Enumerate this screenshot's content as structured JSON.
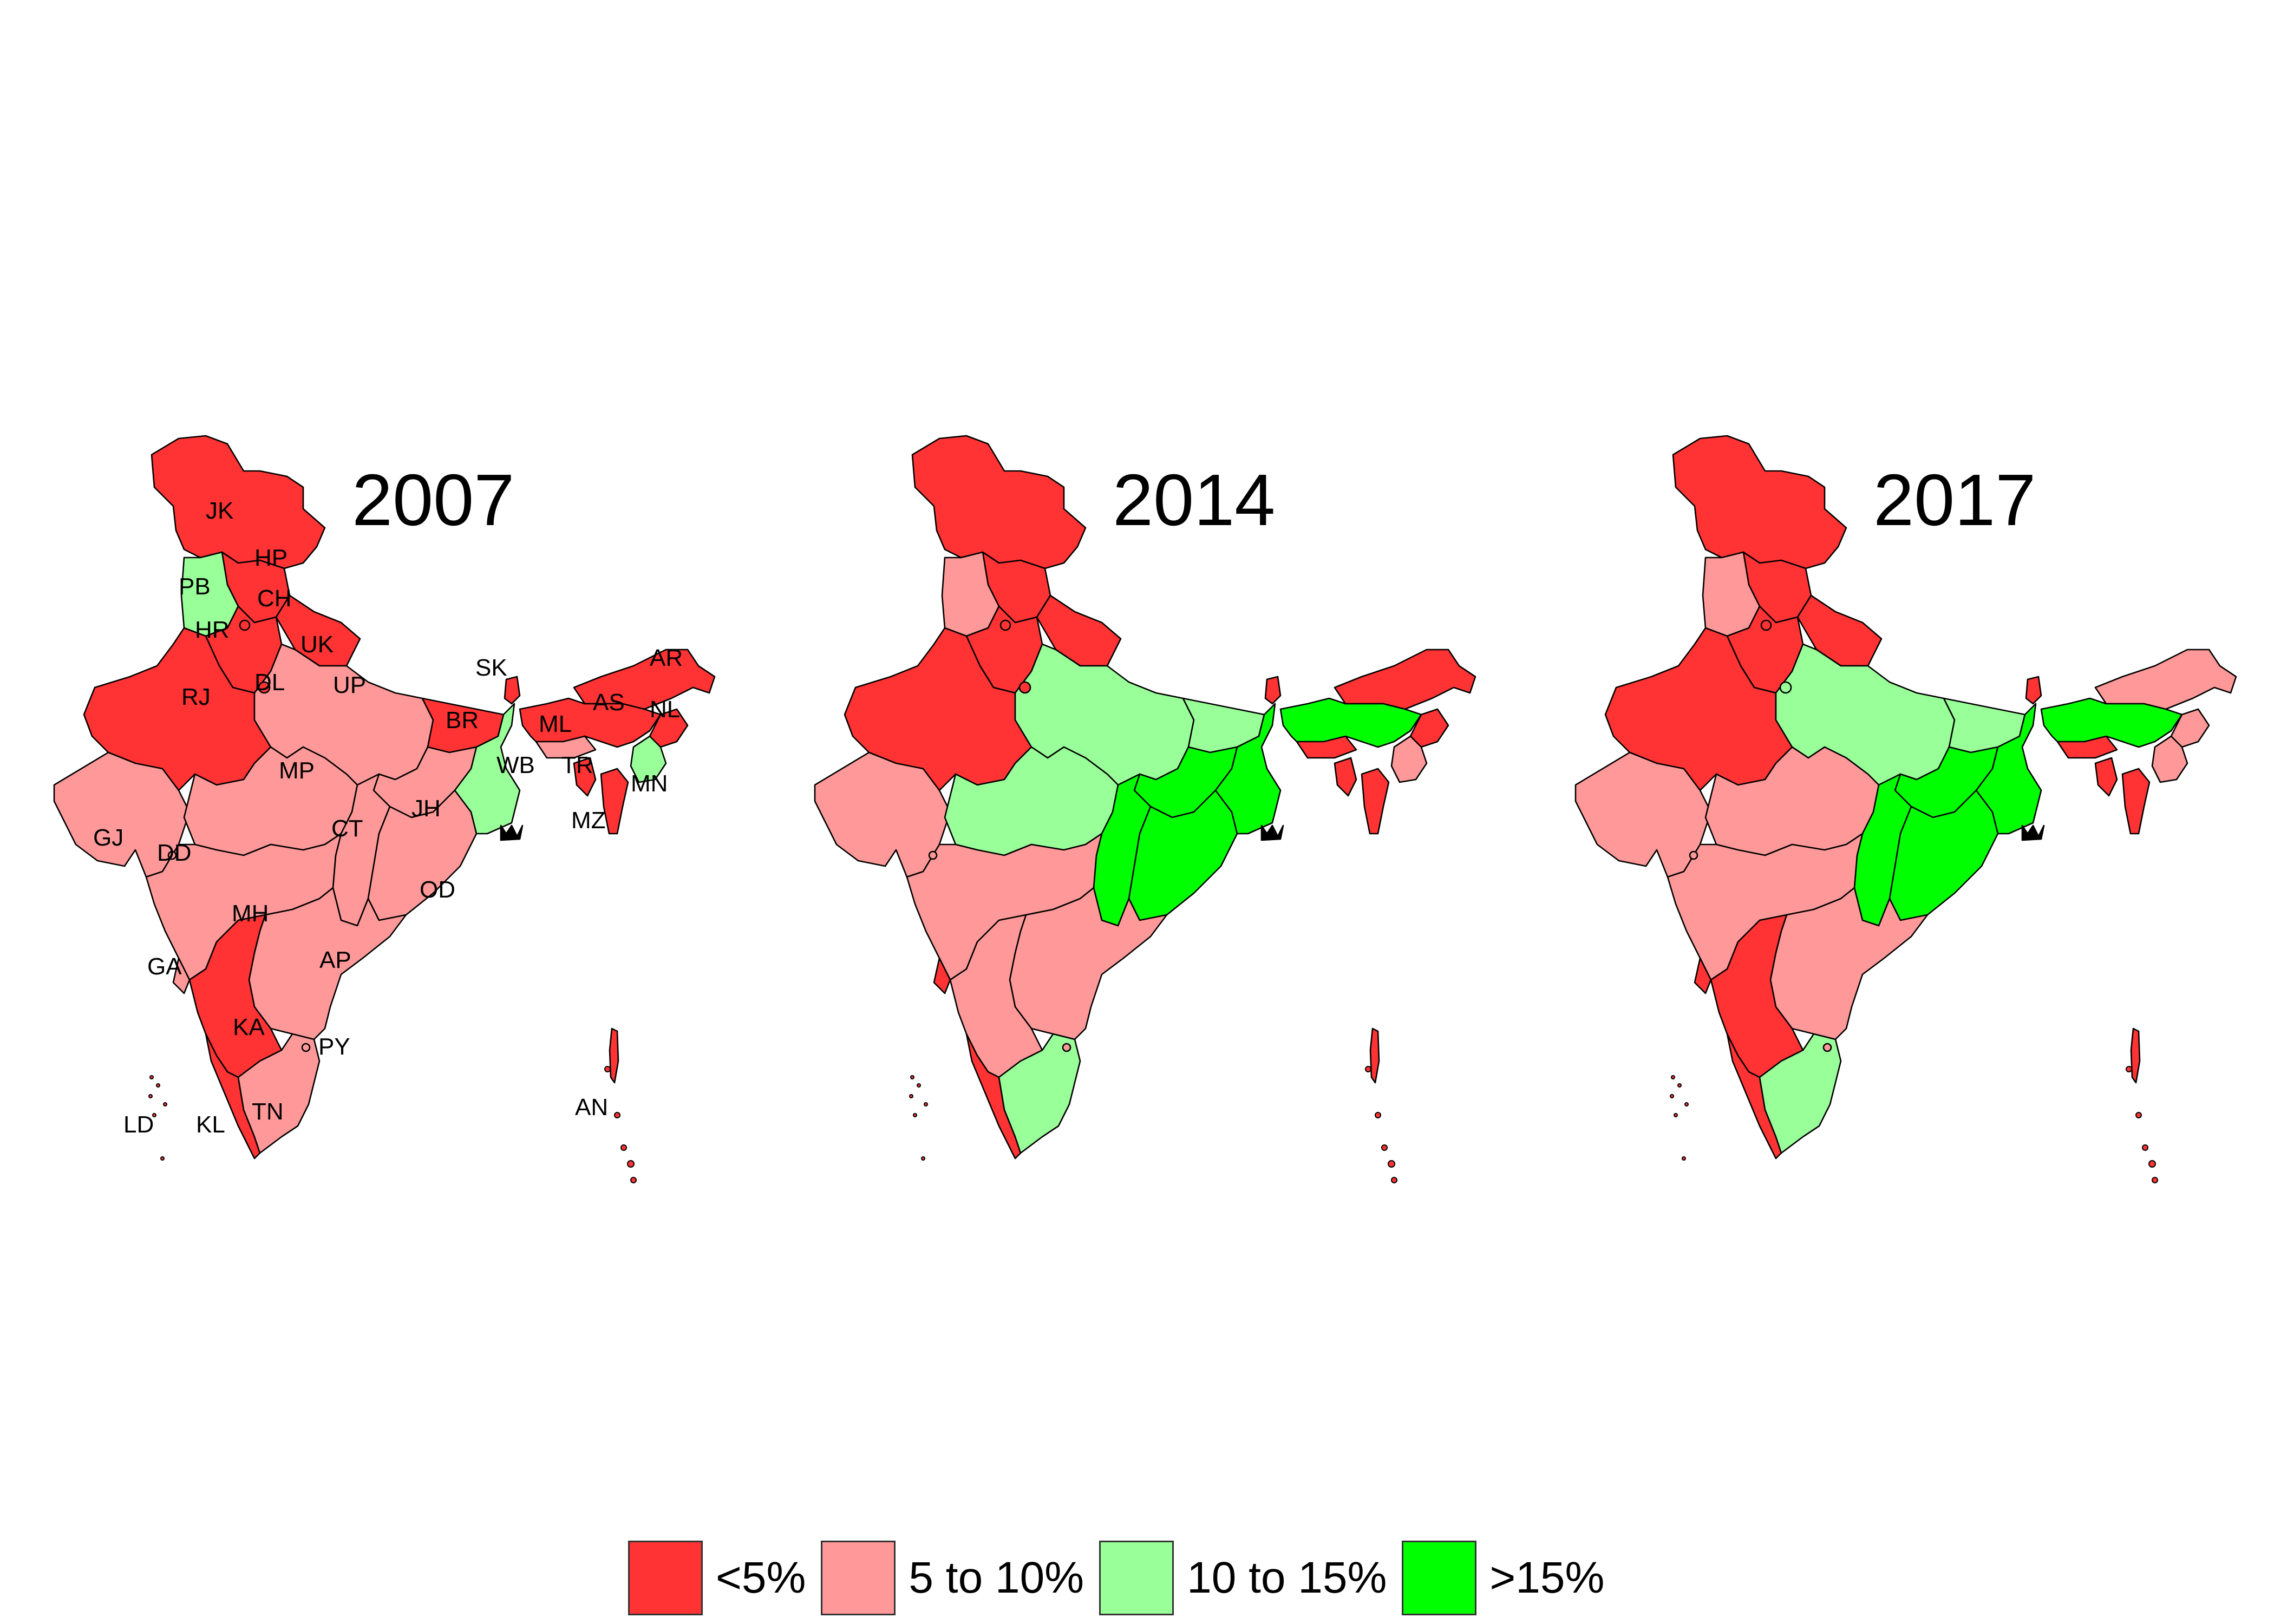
{
  "colors": {
    "lt5": "#ff3333",
    "5to10": "#ff9999",
    "10to15": "#99ff99",
    "gt15": "#00ff00"
  },
  "maps": [
    {
      "year": "2007",
      "labels": [
        "JK",
        "HP",
        "PB",
        "CH",
        "HR",
        "UK",
        "RJ",
        "DL",
        "UP",
        "SK",
        "AR",
        "AS",
        "NL",
        "BR",
        "ML",
        "WB",
        "TR",
        "MN",
        "MP",
        "JH",
        "GJ",
        "DD",
        "CT",
        "MZ",
        "OD",
        "MH",
        "GA",
        "AP",
        "KA",
        "PY",
        "LD",
        "KL",
        "TN",
        "AN"
      ]
    },
    {
      "year": "2014",
      "labels": []
    },
    {
      "year": "2017",
      "labels": []
    }
  ],
  "legend": [
    {
      "label": "<5%",
      "color": "#ff3333"
    },
    {
      "label": "5 to 10%",
      "color": "#ff9999"
    },
    {
      "label": "10 to 15%",
      "color": "#99ff99"
    },
    {
      "label": ">15%",
      "color": "#00ff00"
    }
  ]
}
